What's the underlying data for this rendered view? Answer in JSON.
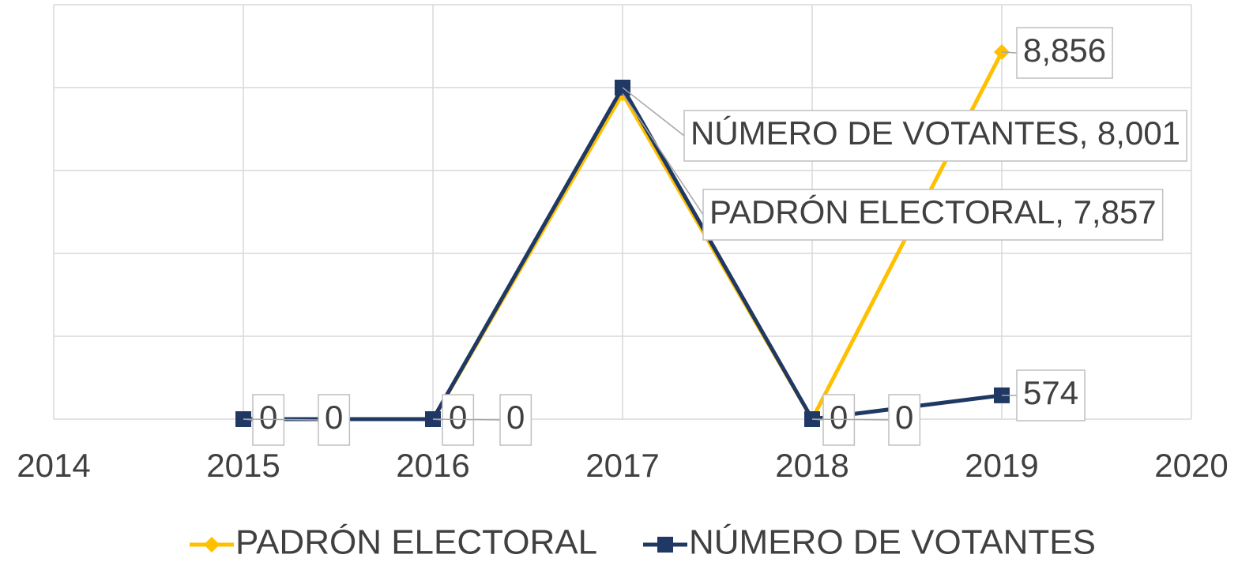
{
  "chart_data": {
    "type": "line",
    "x": [
      2015,
      2016,
      2017,
      2018,
      2019
    ],
    "series": [
      {
        "name": "PADRÓN ELECTORAL",
        "color": "#FFC000",
        "marker": "diamond",
        "values": [
          0,
          0,
          7857,
          0,
          8856
        ],
        "value_labels": [
          "0",
          "0",
          "PADRÓN ELECTORAL, 7,857",
          "0",
          "8,856"
        ]
      },
      {
        "name": "NÚMERO DE VOTANTES",
        "color": "#1F3864",
        "marker": "square",
        "values": [
          0,
          0,
          8001,
          0,
          574
        ],
        "value_labels": [
          "0",
          "0",
          "NÚMERO DE VOTANTES, 8,001",
          "0",
          "574"
        ]
      }
    ],
    "xlim": [
      2014,
      2020
    ],
    "xticks": [
      2014,
      2015,
      2016,
      2017,
      2018,
      2019,
      2020
    ],
    "ylim": [
      0,
      10000
    ],
    "yticks": [
      0,
      2000,
      4000,
      6000,
      8000,
      10000
    ],
    "grid": true,
    "legend": "bottom"
  }
}
